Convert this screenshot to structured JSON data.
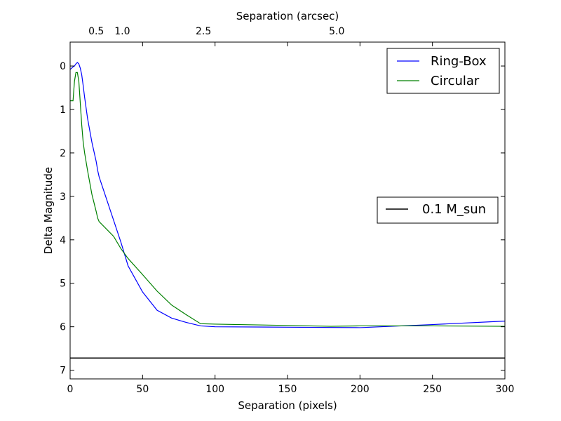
{
  "chart_data": {
    "type": "line",
    "xlabel": "Separation (pixels)",
    "ylabel": "Delta Magnitude",
    "top_xlabel": "Separation (arcsec)",
    "xlim": [
      0,
      300
    ],
    "ylim": [
      7.2,
      -0.55
    ],
    "y_inverted": true,
    "grid": false,
    "x_ticks": [
      "0",
      "50",
      "100",
      "150",
      "200",
      "250",
      "300"
    ],
    "y_ticks": [
      "0",
      "1",
      "2",
      "3",
      "4",
      "5",
      "6",
      "7"
    ],
    "top_ticks": [
      {
        "label": "0.5",
        "x": 18
      },
      {
        "label": "1.0",
        "x": 36
      },
      {
        "label": "2.5",
        "x": 92
      },
      {
        "label": "5.0",
        "x": 184
      }
    ],
    "series": [
      {
        "name": "Ring-Box",
        "color": "#0000ff",
        "x": [
          0,
          1,
          2,
          3,
          4,
          5,
          6,
          7,
          8,
          9,
          10,
          12,
          15,
          18,
          19,
          20,
          25,
          30,
          35,
          40,
          45,
          50,
          60,
          70,
          80,
          90,
          100,
          150,
          200,
          250,
          300
        ],
        "y": [
          0.08,
          0.05,
          0.02,
          0.0,
          -0.05,
          -0.08,
          -0.05,
          0.05,
          0.2,
          0.45,
          0.72,
          1.2,
          1.75,
          2.2,
          2.4,
          2.55,
          3.05,
          3.55,
          4.05,
          4.6,
          4.9,
          5.2,
          5.62,
          5.8,
          5.9,
          5.98,
          6.0,
          6.01,
          6.02,
          5.95,
          5.87
        ]
      },
      {
        "name": "Circular",
        "color": "#008000",
        "x": [
          0,
          1,
          2,
          3,
          4,
          5,
          6,
          7,
          8,
          9,
          10,
          12,
          15,
          18,
          19,
          20,
          25,
          30,
          35,
          40,
          50,
          60,
          70,
          80,
          90,
          100,
          150,
          180,
          200,
          250,
          300
        ],
        "y": [
          0.8,
          0.8,
          0.8,
          0.35,
          0.15,
          0.15,
          0.35,
          0.85,
          1.35,
          1.75,
          2.0,
          2.4,
          2.95,
          3.35,
          3.5,
          3.58,
          3.75,
          3.92,
          4.2,
          4.43,
          4.8,
          5.18,
          5.5,
          5.72,
          5.93,
          5.94,
          5.97,
          5.99,
          5.98,
          5.98,
          5.99
        ]
      }
    ],
    "hline": {
      "name": "0.1 M_sun",
      "y": 6.72,
      "color": "#000000"
    },
    "legends": [
      {
        "placement": "top-right",
        "entries": [
          "Ring-Box",
          "Circular"
        ]
      },
      {
        "placement": "center-right",
        "entries": [
          "0.1 M_sun"
        ]
      }
    ]
  }
}
